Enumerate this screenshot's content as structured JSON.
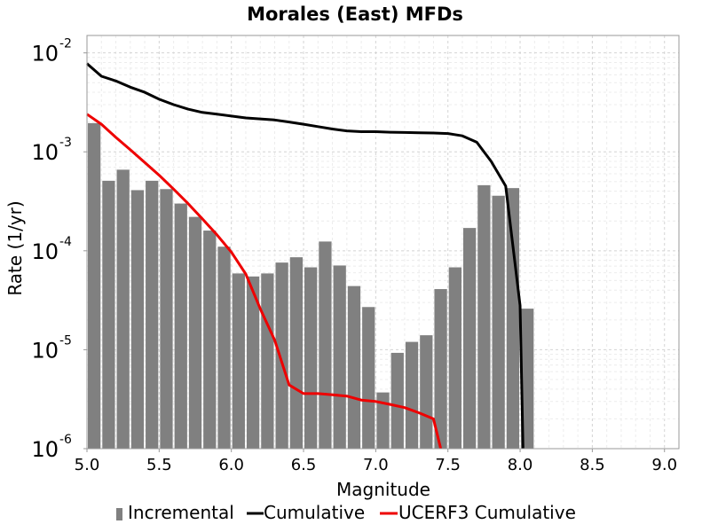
{
  "chart_data": {
    "type": "bar",
    "title": "Morales (East) MFDs",
    "xlabel": "Magnitude",
    "ylabel": "Rate (1/yr)",
    "xlim": [
      5.0,
      9.1
    ],
    "ylim": [
      1e-06,
      0.015
    ],
    "yscale": "log",
    "grid": true,
    "legend_position": "bottom",
    "x_ticks": [
      "5.0",
      "5.5",
      "6.0",
      "6.5",
      "7.0",
      "7.5",
      "8.0",
      "8.5",
      "9.0"
    ],
    "y_ticks": [
      {
        "base": "10",
        "exp": "-6",
        "value": 1e-06
      },
      {
        "base": "10",
        "exp": "-5",
        "value": 1e-05
      },
      {
        "base": "10",
        "exp": "-4",
        "value": 0.0001
      },
      {
        "base": "10",
        "exp": "-3",
        "value": 0.001
      },
      {
        "base": "10",
        "exp": "-2",
        "value": 0.01
      }
    ],
    "series": [
      {
        "name": "Incremental",
        "kind": "bar",
        "color": "#808080",
        "x": [
          5.05,
          5.15,
          5.25,
          5.35,
          5.45,
          5.55,
          5.65,
          5.75,
          5.85,
          5.95,
          6.05,
          6.15,
          6.25,
          6.35,
          6.45,
          6.55,
          6.65,
          6.75,
          6.85,
          6.95,
          7.05,
          7.15,
          7.25,
          7.35,
          7.45,
          7.55,
          7.65,
          7.75,
          7.85,
          7.95,
          8.05
        ],
        "values": [
          0.00195,
          0.00051,
          0.00066,
          0.00041,
          0.00051,
          0.00042,
          0.0003,
          0.00022,
          0.00016,
          0.00011,
          5.9e-05,
          5.5e-05,
          5.9e-05,
          7.6e-05,
          8.6e-05,
          6.8e-05,
          0.000124,
          7.1e-05,
          4.4e-05,
          2.7e-05,
          3.7e-06,
          9.3e-06,
          1.2e-05,
          1.4e-05,
          4.1e-05,
          6.8e-05,
          0.00017,
          0.00046,
          0.00036,
          0.00043,
          2.6e-05
        ]
      },
      {
        "name": "Cumulative",
        "kind": "line",
        "color": "#000000",
        "x": [
          5.0,
          5.1,
          5.2,
          5.3,
          5.4,
          5.5,
          5.6,
          5.7,
          5.8,
          5.9,
          6.0,
          6.1,
          6.2,
          6.3,
          6.4,
          6.5,
          6.6,
          6.7,
          6.8,
          6.9,
          7.0,
          7.1,
          7.2,
          7.3,
          7.4,
          7.5,
          7.6,
          7.7,
          7.8,
          7.9,
          8.0,
          8.02
        ],
        "values": [
          0.0078,
          0.0058,
          0.0052,
          0.0045,
          0.004,
          0.0034,
          0.003,
          0.0027,
          0.0025,
          0.0024,
          0.0023,
          0.0022,
          0.00215,
          0.0021,
          0.002,
          0.0019,
          0.0018,
          0.0017,
          0.00163,
          0.0016,
          0.0016,
          0.00158,
          0.00157,
          0.00156,
          0.00155,
          0.00153,
          0.00145,
          0.00125,
          0.0008,
          0.00045,
          2.8e-05,
          1e-06
        ]
      },
      {
        "name": "UCERF3 Cumulative",
        "kind": "line",
        "color": "#ee0000",
        "x": [
          5.0,
          5.1,
          5.2,
          5.3,
          5.4,
          5.5,
          5.6,
          5.7,
          5.8,
          5.9,
          6.0,
          6.1,
          6.2,
          6.3,
          6.4,
          6.5,
          6.6,
          6.7,
          6.8,
          6.9,
          7.0,
          7.1,
          7.2,
          7.3,
          7.4,
          7.45
        ],
        "values": [
          0.0024,
          0.0019,
          0.0014,
          0.00105,
          0.00078,
          0.00058,
          0.00042,
          0.0003,
          0.00021,
          0.000145,
          9.7e-05,
          5.8e-05,
          2.6e-05,
          1.25e-05,
          4.4e-06,
          3.6e-06,
          3.6e-06,
          3.5e-06,
          3.4e-06,
          3.1e-06,
          3e-06,
          2.8e-06,
          2.6e-06,
          2.3e-06,
          2e-06,
          1e-06
        ]
      }
    ]
  }
}
